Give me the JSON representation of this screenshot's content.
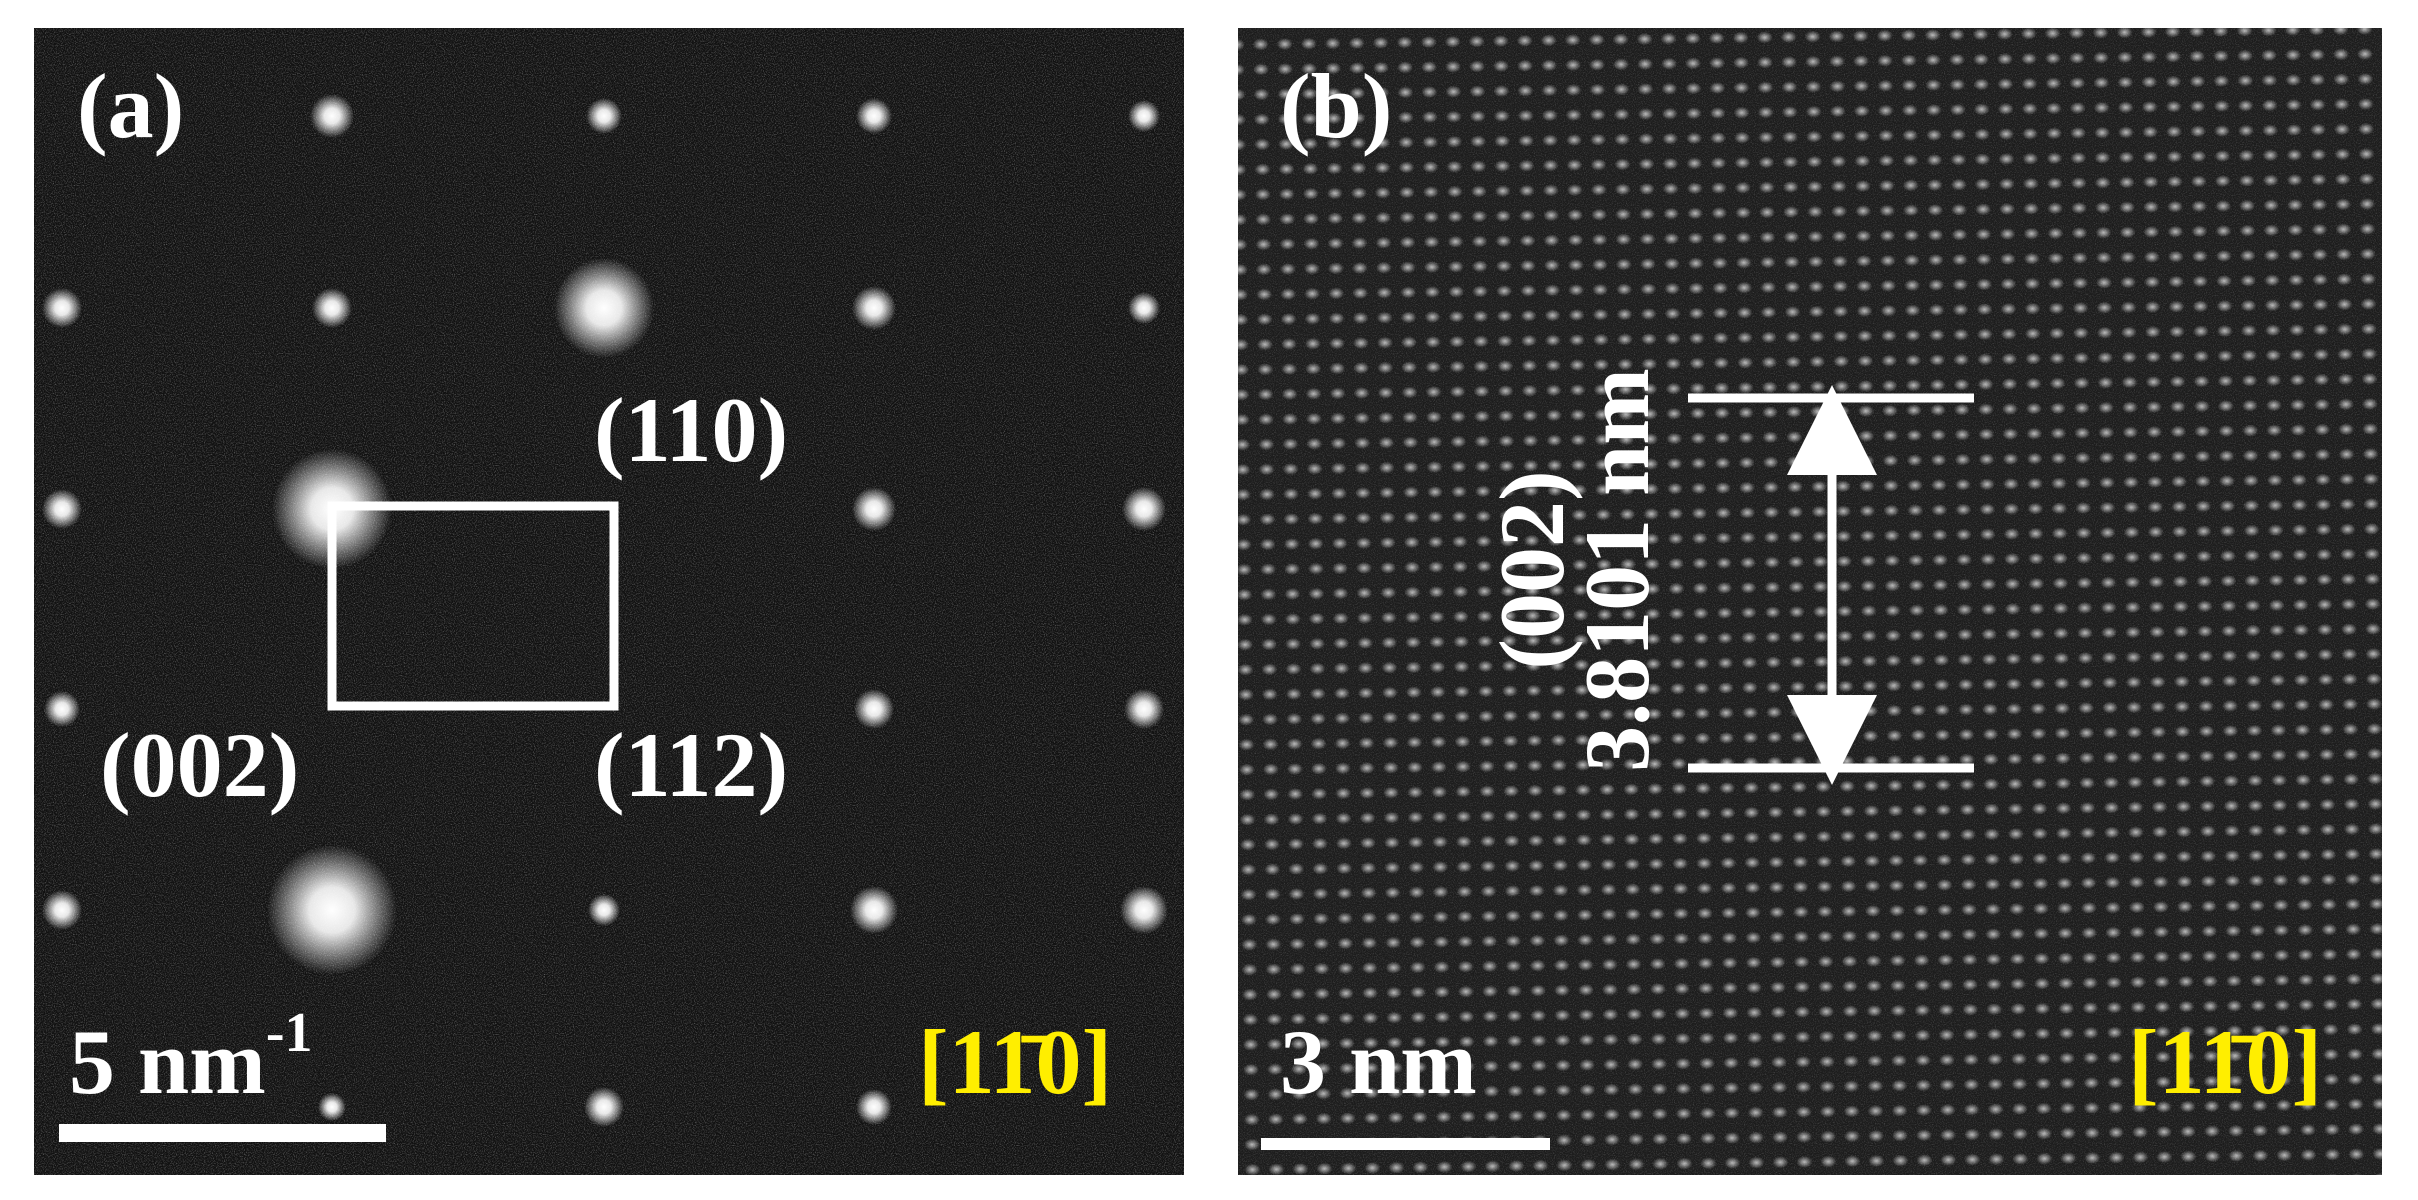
{
  "panels": [
    {
      "label": "(a)",
      "annotations": [
        "(110)",
        "(002)",
        "(112)"
      ],
      "scale_bar": {
        "text": "5 nm",
        "superscript": "-1"
      },
      "zone_axis": "[11̄0]"
    },
    {
      "label": "(b)",
      "annotations": [
        "(002)",
        "3.8101 nm"
      ],
      "scale_bar": {
        "text": "3 nm"
      },
      "zone_axis": "[11̄0]"
    }
  ]
}
